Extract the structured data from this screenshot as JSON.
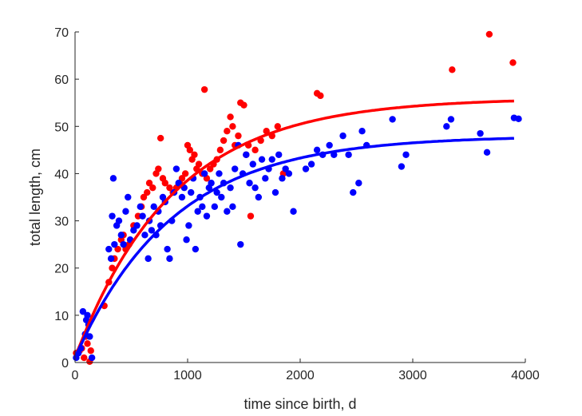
{
  "chart_data": {
    "type": "scatter",
    "title": "",
    "xlabel": "time since birth, d",
    "ylabel": "total length, cm",
    "xlim": [
      0,
      4000
    ],
    "ylim": [
      0,
      70
    ],
    "xticks": [
      0,
      1000,
      2000,
      3000,
      4000
    ],
    "yticks": [
      0,
      10,
      20,
      30,
      40,
      50,
      60,
      70
    ],
    "xtick_labels": [
      "0",
      "1000",
      "2000",
      "3000",
      "4000"
    ],
    "ytick_labels": [
      "0",
      "10",
      "20",
      "30",
      "40",
      "50",
      "60",
      "70"
    ],
    "grid": false,
    "legend": "none",
    "series": [
      {
        "color": "#ff0000",
        "kind": "scatter",
        "points": [
          [
            10,
            2
          ],
          [
            40,
            2.5
          ],
          [
            60,
            3
          ],
          [
            80,
            1
          ],
          [
            95,
            5.5
          ],
          [
            110,
            4
          ],
          [
            130,
            0.2
          ],
          [
            140,
            2.5
          ],
          [
            260,
            12
          ],
          [
            300,
            17
          ],
          [
            330,
            20
          ],
          [
            350,
            22
          ],
          [
            380,
            24
          ],
          [
            410,
            26
          ],
          [
            430,
            27
          ],
          [
            450,
            24
          ],
          [
            480,
            25
          ],
          [
            520,
            29
          ],
          [
            560,
            31
          ],
          [
            590,
            33
          ],
          [
            610,
            35
          ],
          [
            640,
            36
          ],
          [
            660,
            38
          ],
          [
            690,
            37
          ],
          [
            720,
            40
          ],
          [
            740,
            41
          ],
          [
            760,
            47.5
          ],
          [
            780,
            39
          ],
          [
            800,
            38
          ],
          [
            840,
            37
          ],
          [
            870,
            36
          ],
          [
            900,
            37
          ],
          [
            930,
            38
          ],
          [
            950,
            39
          ],
          [
            980,
            40
          ],
          [
            1000,
            46
          ],
          [
            1020,
            45
          ],
          [
            1040,
            43
          ],
          [
            1060,
            44
          ],
          [
            1080,
            41
          ],
          [
            1100,
            42
          ],
          [
            1130,
            40
          ],
          [
            1150,
            57.8
          ],
          [
            1170,
            39
          ],
          [
            1200,
            41
          ],
          [
            1230,
            42
          ],
          [
            1260,
            43
          ],
          [
            1290,
            45
          ],
          [
            1320,
            47
          ],
          [
            1350,
            49
          ],
          [
            1380,
            52
          ],
          [
            1400,
            50
          ],
          [
            1420,
            46
          ],
          [
            1450,
            48
          ],
          [
            1470,
            55
          ],
          [
            1500,
            54.5
          ],
          [
            1520,
            44
          ],
          [
            1540,
            46
          ],
          [
            1560,
            31
          ],
          [
            1600,
            45
          ],
          [
            1650,
            47
          ],
          [
            1700,
            49
          ],
          [
            1750,
            48
          ],
          [
            1800,
            50
          ],
          [
            1850,
            40
          ],
          [
            2150,
            57
          ],
          [
            2180,
            56.5
          ],
          [
            3350,
            62
          ],
          [
            3680,
            69.5
          ],
          [
            3890,
            63.5
          ]
        ]
      },
      {
        "color": "#0000ff",
        "kind": "scatter",
        "points": [
          [
            10,
            1
          ],
          [
            30,
            2
          ],
          [
            50,
            3
          ],
          [
            70,
            10.8
          ],
          [
            90,
            6
          ],
          [
            100,
            9
          ],
          [
            110,
            10
          ],
          [
            120,
            8
          ],
          [
            130,
            5.5
          ],
          [
            150,
            1
          ],
          [
            300,
            24
          ],
          [
            320,
            22
          ],
          [
            330,
            31
          ],
          [
            340,
            39
          ],
          [
            350,
            25
          ],
          [
            370,
            29
          ],
          [
            390,
            30
          ],
          [
            410,
            27
          ],
          [
            430,
            25
          ],
          [
            450,
            32
          ],
          [
            470,
            35
          ],
          [
            490,
            26
          ],
          [
            520,
            28
          ],
          [
            550,
            29
          ],
          [
            580,
            33
          ],
          [
            600,
            31
          ],
          [
            620,
            27
          ],
          [
            650,
            22
          ],
          [
            660,
            30
          ],
          [
            680,
            28
          ],
          [
            700,
            33
          ],
          [
            720,
            27
          ],
          [
            740,
            32
          ],
          [
            760,
            29
          ],
          [
            780,
            35
          ],
          [
            800,
            34
          ],
          [
            820,
            24
          ],
          [
            840,
            22
          ],
          [
            860,
            30
          ],
          [
            880,
            36
          ],
          [
            900,
            41
          ],
          [
            920,
            38
          ],
          [
            950,
            35
          ],
          [
            970,
            37
          ],
          [
            990,
            26
          ],
          [
            1010,
            29
          ],
          [
            1030,
            36
          ],
          [
            1050,
            39
          ],
          [
            1070,
            24
          ],
          [
            1090,
            32
          ],
          [
            1110,
            35
          ],
          [
            1130,
            33
          ],
          [
            1150,
            40
          ],
          [
            1170,
            31
          ],
          [
            1190,
            37
          ],
          [
            1210,
            38
          ],
          [
            1240,
            33
          ],
          [
            1260,
            36
          ],
          [
            1280,
            40
          ],
          [
            1300,
            35
          ],
          [
            1320,
            38
          ],
          [
            1350,
            32
          ],
          [
            1380,
            37
          ],
          [
            1400,
            33
          ],
          [
            1420,
            41
          ],
          [
            1450,
            46
          ],
          [
            1470,
            25
          ],
          [
            1490,
            40
          ],
          [
            1520,
            44
          ],
          [
            1550,
            38
          ],
          [
            1580,
            42
          ],
          [
            1600,
            37
          ],
          [
            1630,
            35
          ],
          [
            1660,
            43
          ],
          [
            1690,
            39
          ],
          [
            1720,
            41
          ],
          [
            1750,
            43
          ],
          [
            1780,
            36
          ],
          [
            1810,
            44
          ],
          [
            1840,
            39
          ],
          [
            1870,
            41
          ],
          [
            1900,
            40
          ],
          [
            1940,
            32
          ],
          [
            2050,
            41
          ],
          [
            2100,
            42
          ],
          [
            2150,
            45
          ],
          [
            2200,
            44
          ],
          [
            2260,
            46
          ],
          [
            2300,
            44
          ],
          [
            2380,
            48
          ],
          [
            2430,
            44
          ],
          [
            2470,
            36
          ],
          [
            2520,
            38
          ],
          [
            2550,
            49
          ],
          [
            2590,
            46
          ],
          [
            2820,
            51.5
          ],
          [
            2900,
            41.5
          ],
          [
            2940,
            44
          ],
          [
            3300,
            50
          ],
          [
            3340,
            51.5
          ],
          [
            3600,
            48.5
          ],
          [
            3660,
            44.5
          ],
          [
            3900,
            51.8
          ],
          [
            3940,
            51.6
          ]
        ]
      },
      {
        "color": "#ff0000",
        "kind": "fit-line",
        "model": "von Bertalanffy",
        "L_inf": 56,
        "L0": 1,
        "k": 0.00115,
        "x_range": [
          0,
          3900
        ]
      },
      {
        "color": "#0000ff",
        "kind": "fit-line",
        "model": "von Bertalanffy",
        "L_inf": 48,
        "L0": 1,
        "k": 0.00115,
        "x_range": [
          0,
          3900
        ]
      }
    ]
  }
}
